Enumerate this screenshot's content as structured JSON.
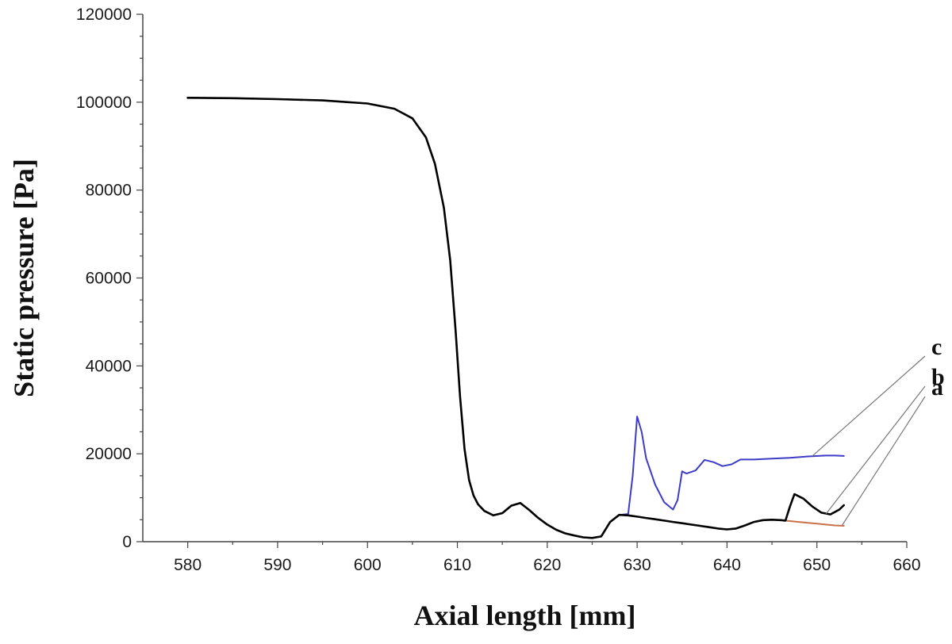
{
  "chart_data": {
    "type": "line",
    "title": "",
    "xlabel": "Axial length [mm]",
    "ylabel": "Static pressure [Pa]",
    "xlim": [
      575,
      660
    ],
    "ylim": [
      0,
      120000
    ],
    "x_ticks": [
      580,
      590,
      600,
      610,
      620,
      630,
      640,
      650,
      660
    ],
    "y_ticks": [
      0,
      20000,
      40000,
      60000,
      80000,
      100000,
      120000
    ],
    "grid": false,
    "legend": "none",
    "series": [
      {
        "name": "a",
        "color": "#c8714a",
        "x": [
          580,
          585,
          590,
          595,
          600,
          603,
          605,
          606.5,
          607.5,
          608.5,
          609.2,
          609.8,
          610.3,
          610.8,
          611.3,
          611.8,
          612.3,
          613,
          614,
          615,
          616,
          617,
          618,
          619,
          620,
          621,
          622,
          623,
          624,
          625,
          626,
          627,
          628,
          629,
          630,
          631,
          632,
          633,
          634,
          635,
          636,
          637,
          638,
          639,
          640,
          641,
          642,
          643,
          644,
          645,
          646,
          647,
          648,
          649,
          650,
          651,
          652,
          653
        ],
        "y": [
          101000,
          100900,
          100700,
          100400,
          99700,
          98500,
          96300,
          92000,
          86000,
          76000,
          64000,
          48000,
          33000,
          21000,
          14000,
          10500,
          8500,
          7000,
          6000,
          6500,
          8200,
          8800,
          7200,
          5400,
          3900,
          2700,
          1900,
          1400,
          1000,
          850,
          1200,
          4500,
          6100,
          6000,
          5700,
          5400,
          5100,
          4800,
          4500,
          4200,
          3900,
          3600,
          3300,
          3000,
          2800,
          3000,
          3700,
          4500,
          4900,
          5000,
          4900,
          4700,
          4500,
          4300,
          4100,
          3900,
          3700,
          3600
        ]
      },
      {
        "name": "b",
        "color": "#000000",
        "x": [
          580,
          585,
          590,
          595,
          600,
          603,
          605,
          606.5,
          607.5,
          608.5,
          609.2,
          609.8,
          610.3,
          610.8,
          611.3,
          611.8,
          612.3,
          613,
          614,
          615,
          616,
          617,
          618,
          619,
          620,
          621,
          622,
          623,
          624,
          625,
          626,
          627,
          628,
          629,
          630,
          631,
          632,
          633,
          634,
          635,
          636,
          637,
          638,
          639,
          640,
          641,
          642,
          643,
          644,
          645,
          646,
          646.5,
          647,
          647.5,
          648.5,
          649.5,
          650.5,
          651.5,
          652.5,
          653
        ],
        "y": [
          101000,
          100900,
          100700,
          100400,
          99700,
          98500,
          96300,
          92000,
          86000,
          76000,
          64000,
          48000,
          33000,
          21000,
          14000,
          10500,
          8500,
          7000,
          6000,
          6500,
          8200,
          8800,
          7200,
          5400,
          3900,
          2700,
          1900,
          1400,
          1000,
          850,
          1200,
          4500,
          6100,
          6000,
          5700,
          5400,
          5100,
          4800,
          4500,
          4200,
          3900,
          3600,
          3300,
          3000,
          2800,
          3000,
          3700,
          4500,
          4900,
          5000,
          4900,
          4800,
          8000,
          10800,
          9800,
          8000,
          6600,
          6200,
          7300,
          8300
        ]
      },
      {
        "name": "c",
        "color": "#3c3cc8",
        "x": [
          580,
          585,
          590,
          595,
          600,
          603,
          605,
          606.5,
          607.5,
          608.5,
          609.2,
          609.8,
          610.3,
          610.8,
          611.3,
          611.8,
          612.3,
          613,
          614,
          615,
          616,
          617,
          618,
          619,
          620,
          621,
          622,
          623,
          624,
          625,
          626,
          627,
          628,
          629,
          629.5,
          630,
          630.5,
          631,
          632,
          633,
          634,
          634.5,
          635,
          635.5,
          636.5,
          637.5,
          638.5,
          639.5,
          640.5,
          641.5,
          643,
          645,
          647,
          649,
          651,
          652,
          653
        ],
        "y": [
          101000,
          100900,
          100700,
          100400,
          99700,
          98500,
          96300,
          92000,
          86000,
          76000,
          64000,
          48000,
          33000,
          21000,
          14000,
          10500,
          8500,
          7000,
          6000,
          6500,
          8200,
          8800,
          7200,
          5400,
          3900,
          2700,
          1900,
          1400,
          1000,
          850,
          1200,
          4500,
          6100,
          6300,
          15000,
          28500,
          25000,
          19000,
          13000,
          9000,
          7300,
          9500,
          16000,
          15500,
          16200,
          18600,
          18100,
          17200,
          17600,
          18700,
          18700,
          18900,
          19100,
          19400,
          19600,
          19600,
          19500
        ]
      }
    ],
    "annotations": [
      {
        "text": "c",
        "target_series": "c",
        "target_x": 649.5,
        "target_y": 19500
      },
      {
        "text": "b",
        "target_series": "b",
        "target_x": 651.0,
        "target_y": 6300
      },
      {
        "text": "a",
        "target_series": "a",
        "target_x": 652.8,
        "target_y": 3700
      }
    ]
  }
}
